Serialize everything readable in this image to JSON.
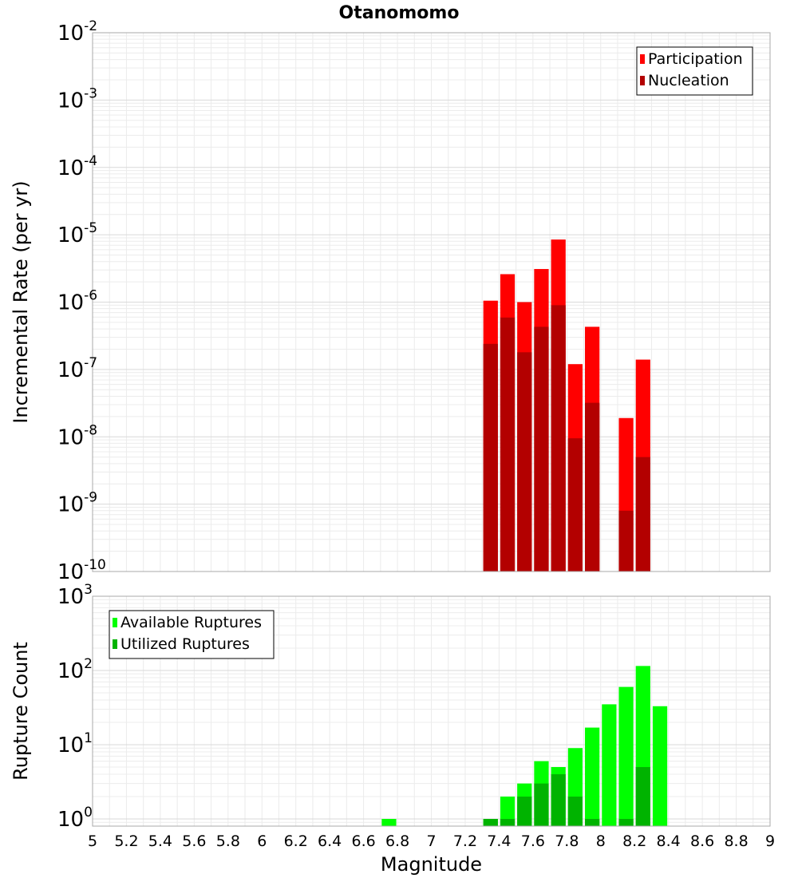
{
  "chart_data": [
    {
      "type": "bar",
      "title": "Otanomomo",
      "xlabel": "",
      "ylabel": "Incremental Rate (per yr)",
      "yscale": "log",
      "xlim": [
        5,
        9
      ],
      "ylim": [
        1e-10,
        0.01
      ],
      "grid": true,
      "legend_position": "top-right",
      "bar_width": 0.1,
      "series": [
        {
          "name": "Participation",
          "color": "#ff0000",
          "x": [
            7.35,
            7.45,
            7.55,
            7.65,
            7.75,
            7.85,
            7.95,
            8.15,
            8.25
          ],
          "values": [
            1.05e-06,
            2.6e-06,
            1e-06,
            3.1e-06,
            8.5e-06,
            1.2e-07,
            4.3e-07,
            1.9e-08,
            1.4e-07
          ]
        },
        {
          "name": "Nucleation",
          "color": "#b30000",
          "x": [
            7.35,
            7.45,
            7.55,
            7.65,
            7.75,
            7.85,
            7.95,
            8.15,
            8.25
          ],
          "values": [
            2.4e-07,
            5.9e-07,
            1.8e-07,
            4.3e-07,
            9e-07,
            9.5e-09,
            3.2e-08,
            8e-10,
            5e-09
          ]
        }
      ]
    },
    {
      "type": "bar",
      "title": "",
      "xlabel": "Magnitude",
      "ylabel": "Rupture Count",
      "yscale": "log",
      "xlim": [
        5,
        9
      ],
      "ylim": [
        0.8,
        1000
      ],
      "grid": true,
      "legend_position": "top-left",
      "bar_width": 0.1,
      "x_ticks": [
        "5",
        "5.2",
        "5.4",
        "5.6",
        "5.8",
        "6",
        "6.2",
        "6.4",
        "6.6",
        "6.8",
        "7",
        "7.2",
        "7.4",
        "7.6",
        "7.8",
        "8",
        "8.2",
        "8.4",
        "8.6",
        "8.8",
        "9"
      ],
      "series": [
        {
          "name": "Available Ruptures",
          "color": "#00ff00",
          "x": [
            6.75,
            7.35,
            7.45,
            7.55,
            7.65,
            7.75,
            7.85,
            7.95,
            8.05,
            8.15,
            8.25,
            8.35
          ],
          "values": [
            1,
            1,
            2,
            3,
            6,
            5,
            9,
            17,
            35,
            60,
            115,
            33
          ]
        },
        {
          "name": "Utilized Ruptures",
          "color": "#00b300",
          "x": [
            7.35,
            7.45,
            7.55,
            7.65,
            7.75,
            7.85,
            7.95,
            8.15,
            8.25
          ],
          "values": [
            1,
            1,
            2,
            3,
            4,
            2,
            1,
            1,
            5
          ]
        }
      ]
    }
  ]
}
